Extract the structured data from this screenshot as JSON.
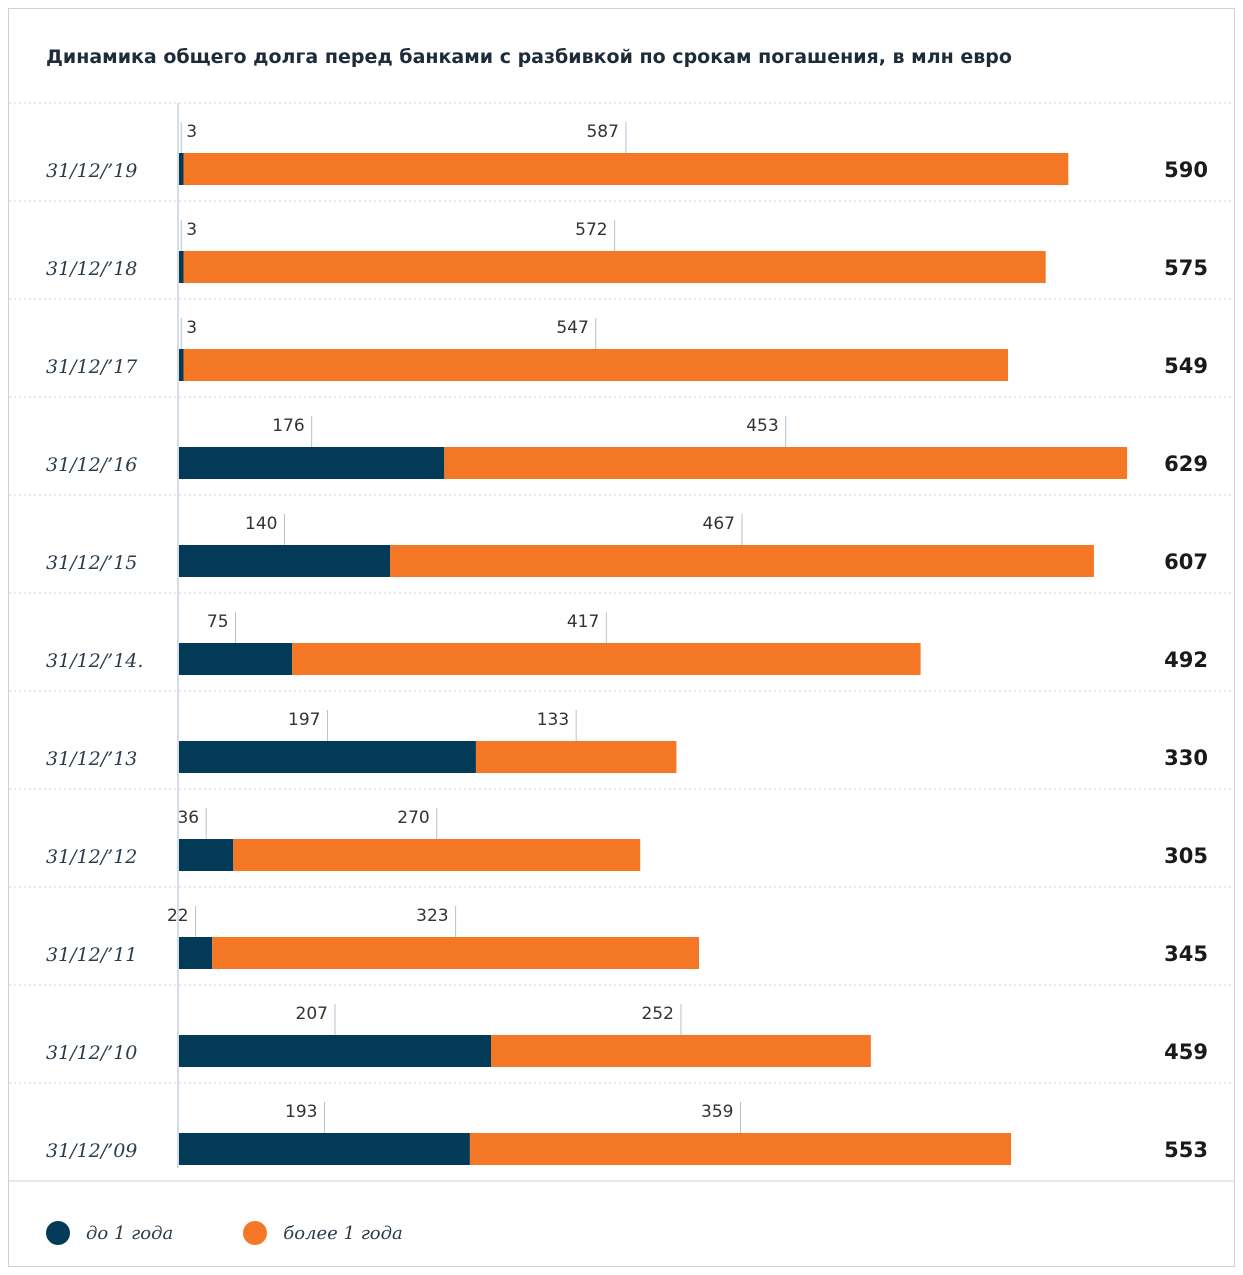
{
  "chart_data": {
    "type": "bar",
    "orientation": "horizontal",
    "stacked": true,
    "title": "Динамика общего долга перед банками с разбивкой по срокам погашения, в млн евро",
    "categories": [
      "31/12/’19",
      "31/12/’18",
      "31/12/’17",
      "31/12/’16",
      "31/12/’15",
      "31/12/’14.",
      "31/12/’13",
      "31/12/’12",
      "31/12/’11",
      "31/12/’10",
      "31/12/’09"
    ],
    "series": [
      {
        "name": "до 1 года",
        "color": "#023a58",
        "values": [
          3,
          3,
          3,
          176,
          140,
          75,
          197,
          36,
          22,
          207,
          193
        ]
      },
      {
        "name": "более 1 года",
        "color": "#f47726",
        "values": [
          587,
          572,
          547,
          453,
          467,
          417,
          133,
          270,
          323,
          252,
          359
        ]
      }
    ],
    "totals": [
      590,
      575,
      549,
      629,
      607,
      492,
      330,
      305,
      345,
      459,
      553
    ],
    "legend_position": "bottom-left",
    "grid": false
  }
}
